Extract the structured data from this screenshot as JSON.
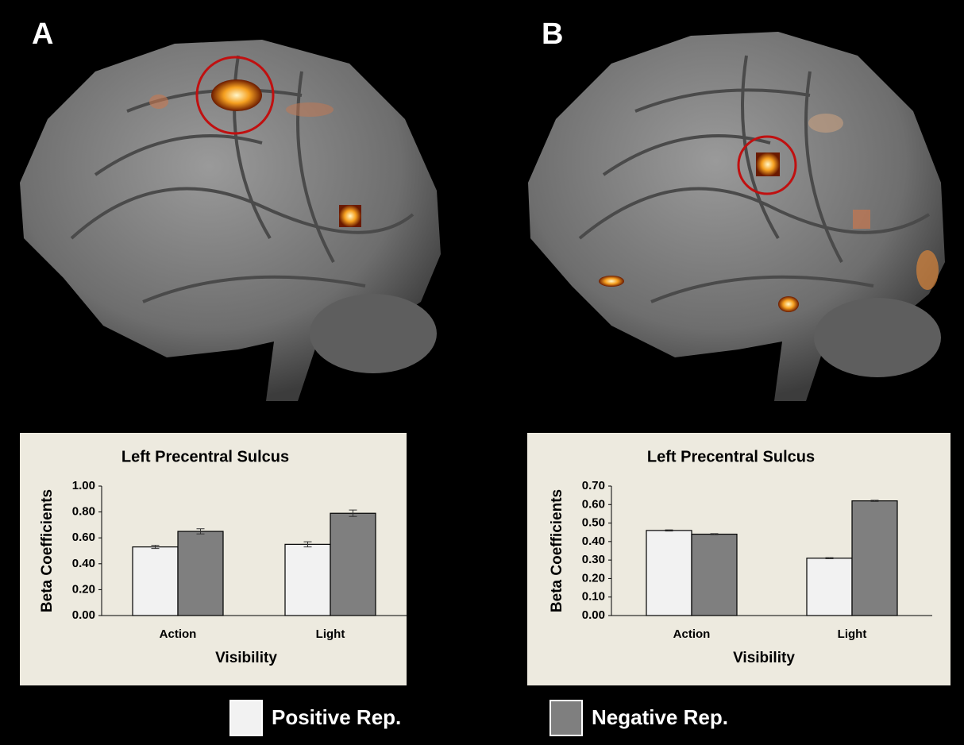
{
  "chart_data": [
    {
      "type": "bar",
      "panel": "A",
      "title": "Left Precentral Sulcus",
      "xlabel": "Visibility",
      "ylabel": "Beta Coefficients",
      "categories": [
        "Action",
        "Light"
      ],
      "series": [
        {
          "name": "Positive Rep.",
          "color": "#f2f2f2",
          "values": [
            0.53,
            0.55
          ],
          "errors": [
            0.012,
            0.02
          ]
        },
        {
          "name": "Negative Rep.",
          "color": "#7f7f7f",
          "values": [
            0.65,
            0.79
          ],
          "errors": [
            0.02,
            0.025
          ]
        }
      ],
      "ylim": [
        0,
        1
      ],
      "yticks": [
        {
          "value": 0,
          "label": "0.00"
        },
        {
          "value": 0.2,
          "label": "0.20"
        },
        {
          "value": 0.4,
          "label": "0.40"
        },
        {
          "value": 0.6,
          "label": "0.60"
        },
        {
          "value": 0.8,
          "label": "0.80"
        },
        {
          "value": 1,
          "label": "1.00"
        }
      ]
    },
    {
      "type": "bar",
      "panel": "B",
      "title": "Left Precentral Sulcus",
      "xlabel": "Visibility",
      "ylabel": "Beta Coefficients",
      "categories": [
        "Action",
        "Light"
      ],
      "series": [
        {
          "color": "#f2f2f2",
          "values": [
            0.46,
            0.31
          ],
          "errors": [
            0.003,
            0.003
          ]
        },
        {
          "color": "#7f7f7f",
          "values": [
            0.44,
            0.62
          ],
          "errors": [
            0.003,
            0.003
          ]
        }
      ],
      "ylim": [
        0,
        0.7
      ],
      "yticks": [
        {
          "value": 0,
          "label": "0.00"
        },
        {
          "value": 0.1,
          "label": "0.10"
        },
        {
          "value": 0.2,
          "label": "0.20"
        },
        {
          "value": 0.3,
          "label": "0.30"
        },
        {
          "value": 0.4,
          "label": "0.40"
        },
        {
          "value": 0.5,
          "label": "0.50"
        },
        {
          "value": 0.6,
          "label": "0.60"
        },
        {
          "value": 0.7,
          "label": "0.70"
        }
      ]
    }
  ]
}
